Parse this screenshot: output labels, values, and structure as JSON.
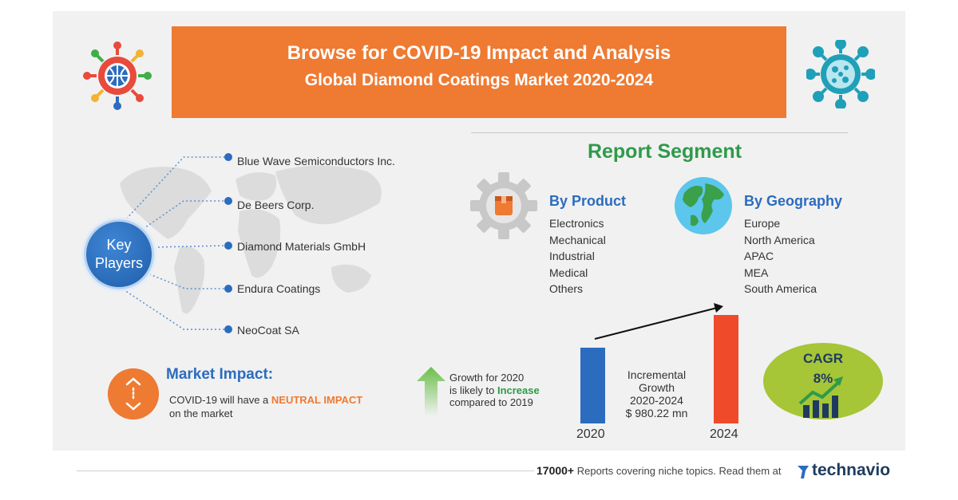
{
  "banner": {
    "title": "Browse for COVID-19 Impact and Analysis",
    "subtitle": "Global Diamond Coatings Market 2020-2024"
  },
  "key_players": {
    "label_line1": "Key",
    "label_line2": "Players",
    "items": [
      "Blue Wave Semiconductors Inc.",
      "De Beers Corp.",
      "Diamond Materials GmbH",
      "Endura Coatings",
      "NeoCoat SA"
    ]
  },
  "report_segment": {
    "title": "Report Segment",
    "by_product": {
      "heading": "By Product",
      "items": [
        "Electronics",
        "Mechanical",
        "Industrial",
        "Medical",
        "Others"
      ]
    },
    "by_geography": {
      "heading": "By Geography",
      "items": [
        "Europe",
        "North America",
        "APAC",
        "MEA",
        "South America"
      ]
    }
  },
  "market_impact": {
    "title": "Market Impact:",
    "text_prefix": "COVID-19 will have a ",
    "text_highlight": "NEUTRAL IMPACT",
    "text_suffix": "on the market"
  },
  "growth": {
    "line1": "Growth for 2020",
    "line2_prefix": "is likely to ",
    "line2_highlight": "Increase",
    "line3": "compared to 2019"
  },
  "incremental": {
    "line1": "Incremental",
    "line2": "Growth",
    "line3": "2020-2024",
    "line4": "$ 980.22 mn"
  },
  "bars": {
    "year_start": "2020",
    "year_end": "2024"
  },
  "cagr": {
    "label": "CAGR",
    "value": "8%"
  },
  "footer": {
    "count": "17000+",
    "text": " Reports covering niche topics. Read them at",
    "brand": "technavio"
  },
  "colors": {
    "banner": "#ef7a32",
    "accent_blue": "#2b6cbf",
    "accent_green": "#2f9a4a",
    "bar_2024": "#ef4b2a",
    "cagr": "#a6c537"
  },
  "icons": [
    "virus-icon",
    "gear-icon",
    "globe-icon",
    "impact-icon",
    "growth-arrow-icon",
    "chart-icon",
    "technavio-logo-icon"
  ]
}
